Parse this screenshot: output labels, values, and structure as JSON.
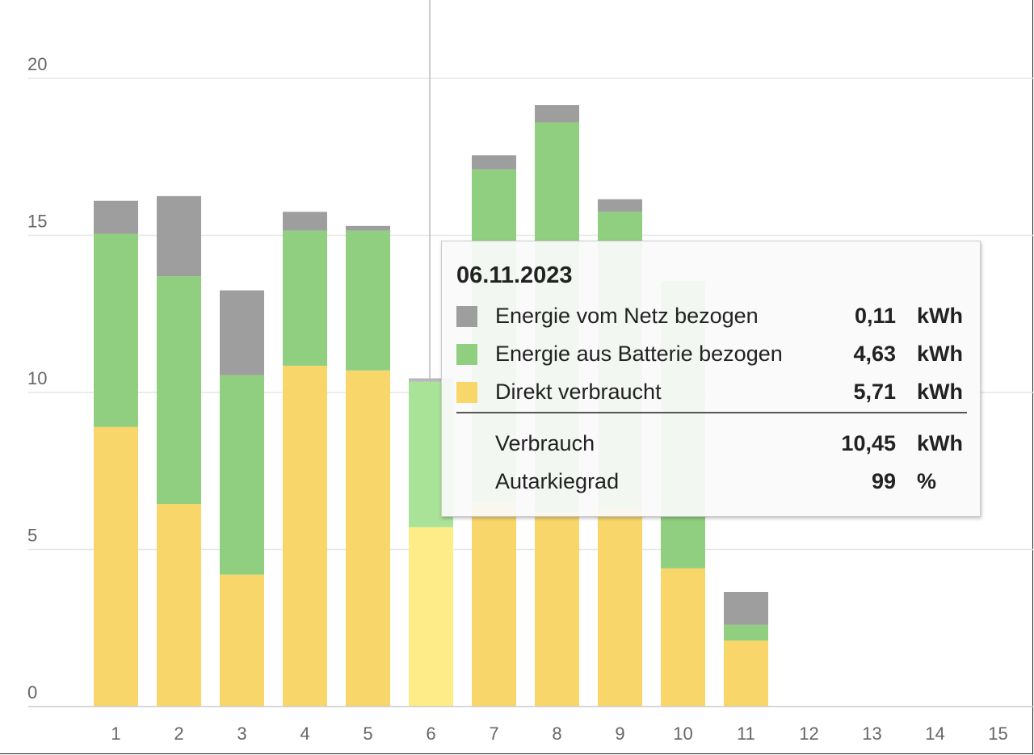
{
  "chart_data": {
    "type": "bar",
    "stacked": true,
    "categories": [
      "1",
      "2",
      "3",
      "4",
      "5",
      "6",
      "7",
      "8",
      "9",
      "10",
      "11",
      "12",
      "13",
      "14",
      "15"
    ],
    "series": [
      {
        "name": "Direkt verbraucht",
        "color": "#f8d66a",
        "highlight_color": "#fdec88",
        "values": [
          8.9,
          6.45,
          4.2,
          10.85,
          10.7,
          5.71,
          6.5,
          6.2,
          6.3,
          4.4,
          2.1,
          null,
          null,
          null,
          null
        ]
      },
      {
        "name": "Energie aus Batterie bezogen",
        "color": "#90cf7f",
        "highlight_color": "#a8e397",
        "values": [
          6.15,
          7.25,
          6.35,
          4.3,
          4.45,
          4.63,
          10.6,
          12.4,
          9.45,
          9.15,
          0.5,
          null,
          null,
          null,
          null
        ]
      },
      {
        "name": "Energie vom Netz bezogen",
        "color": "#9e9e9e",
        "highlight_color": "#b8b8b8",
        "values": [
          1.05,
          2.55,
          2.7,
          0.6,
          0.15,
          0.11,
          0.45,
          0.55,
          0.4,
          0.0,
          1.05,
          null,
          null,
          null,
          null
        ]
      }
    ],
    "ylim": [
      0,
      22
    ],
    "yticks": [
      0,
      5,
      10,
      15,
      20
    ],
    "grid": true,
    "highlighted_category": "6",
    "xlabel": "",
    "ylabel": ""
  },
  "tooltip": {
    "date": "06.11.2023",
    "rows": [
      {
        "label": "Energie vom Netz bezogen",
        "value": "0,11",
        "unit": "kWh",
        "color": "#9e9e9e"
      },
      {
        "label": "Energie aus Batterie bezogen",
        "value": "4,63",
        "unit": "kWh",
        "color": "#90cf7f"
      },
      {
        "label": "Direkt verbraucht",
        "value": "5,71",
        "unit": "kWh",
        "color": "#f8d66a"
      }
    ],
    "totals": [
      {
        "label": "Verbrauch",
        "value": "10,45",
        "unit": "kWh"
      },
      {
        "label": "Autarkiegrad",
        "value": "99",
        "unit": "%"
      }
    ]
  }
}
